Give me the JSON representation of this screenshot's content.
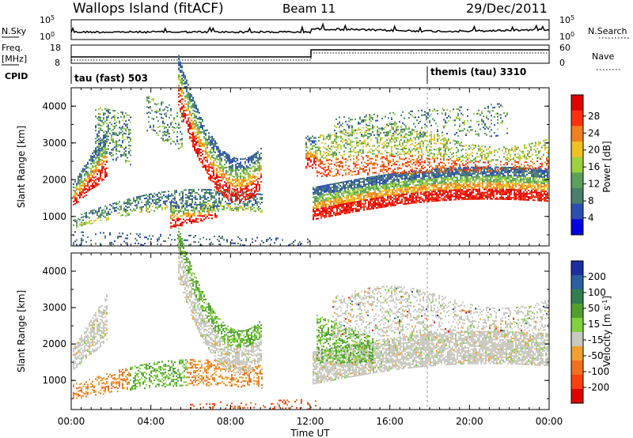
{
  "header": {
    "station": "Wallops Island (fitACF)",
    "beam": "Beam 11",
    "date": "29/Dec/2011"
  },
  "top_panels": {
    "nsky": {
      "label": "N.Sky",
      "left_ticks": [
        "10^5",
        "10^0"
      ],
      "right_label": "N.Search",
      "right_ticks": [
        "10^5",
        "10^0"
      ]
    },
    "freq": {
      "label_line1": "Freq.",
      "label_line2": "[MHz]",
      "left_ticks": [
        "18",
        "8"
      ],
      "right_label": "Nave",
      "right_ticks": [
        "60",
        "0"
      ]
    },
    "cpid": {
      "label": "CPID",
      "programs": [
        "tau (fast) 503",
        "themis (tau) 3310"
      ]
    }
  },
  "colors": {
    "power_scale": [
      "#0000e0",
      "#2a4fb0",
      "#4a7f6a",
      "#5aa05a",
      "#9fd040",
      "#f0c020",
      "#f08020",
      "#ff3010",
      "#e00000"
    ],
    "velocity_scale": [
      "#1a2fa0",
      "#2a5fa0",
      "#2f7f50",
      "#4fa030",
      "#80d040",
      "#c8c8c0",
      "#f0a030",
      "#f07020",
      "#ff4010",
      "#e00000"
    ]
  },
  "chart_data": [
    {
      "type": "heatmap",
      "name": "power",
      "xlabel": "",
      "ylabel": "Slant Range [km]",
      "x_ticks": [
        "00:00",
        "04:00",
        "08:00",
        "12:00",
        "16:00",
        "20:00",
        "00:00"
      ],
      "y_ticks": [
        "1000",
        "2000",
        "3000",
        "4000"
      ],
      "y_range": [
        200,
        4500
      ],
      "x_range_hours": [
        0,
        24
      ],
      "colorbar_label": "Power [dB]",
      "colorbar_ticks": [
        "4",
        "8",
        "12",
        "16",
        "20",
        "24",
        "28"
      ]
    },
    {
      "type": "heatmap",
      "name": "velocity",
      "xlabel": "Time UT",
      "ylabel": "Slant Range [km]",
      "x_ticks": [
        "00:00",
        "04:00",
        "08:00",
        "12:00",
        "16:00",
        "20:00",
        "00:00"
      ],
      "y_ticks": [
        "1000",
        "2000",
        "3000",
        "4000"
      ],
      "y_range": [
        200,
        4500
      ],
      "x_range_hours": [
        0,
        24
      ],
      "colorbar_label": "Velocity [m s^-1]",
      "colorbar_ticks": [
        "200",
        "100",
        "50",
        "15",
        "-15",
        "-50",
        "-100",
        "-200"
      ]
    }
  ]
}
